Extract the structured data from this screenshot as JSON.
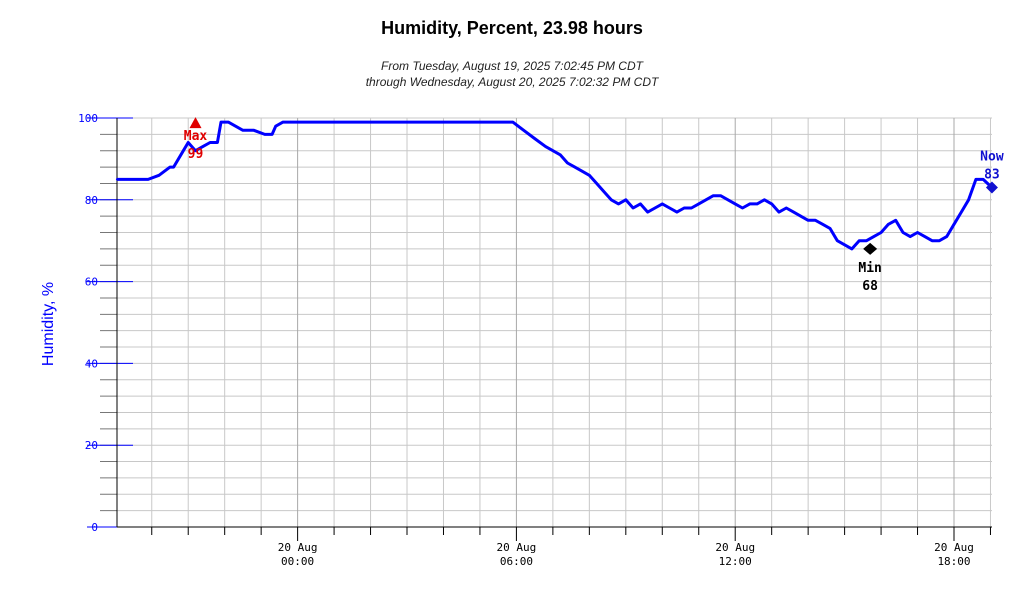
{
  "chart_data": {
    "type": "line",
    "title": "Humidity, Percent, 23.98 hours",
    "subtitle_from": "From Tuesday, August 19, 2025 7:02:45 PM CDT",
    "subtitle_through": "through Wednesday, August 20, 2025 7:02:32 PM CDT",
    "ylabel": "Humidity, %",
    "xlabel": "",
    "ylim": [
      0,
      100
    ],
    "xlim_hours": [
      -4.953,
      19.042
    ],
    "y_ticks": [
      "0",
      "20",
      "40",
      "60",
      "80",
      "100"
    ],
    "x_ticks": [
      {
        "hour": 0,
        "date": "20 Aug",
        "time": "00:00"
      },
      {
        "hour": 6,
        "date": "20 Aug",
        "time": "06:00"
      },
      {
        "hour": 12,
        "date": "20 Aug",
        "time": "12:00"
      },
      {
        "hour": 18,
        "date": "20 Aug",
        "time": "18:00"
      }
    ],
    "grid": true,
    "series": [
      {
        "color": "#0000ff",
        "x": [
          -4.95,
          -4.3,
          -4.1,
          -3.8,
          -3.5,
          -3.4,
          -3.2,
          -3.0,
          -2.8,
          -2.6,
          -2.4,
          -2.2,
          -2.1,
          -1.9,
          -1.7,
          -1.5,
          -1.2,
          -0.9,
          -0.7,
          -0.6,
          -0.4,
          -0.2,
          0.0,
          1.0,
          2.0,
          3.0,
          4.0,
          5.0,
          5.9,
          6.2,
          6.5,
          6.8,
          7.0,
          7.2,
          7.4,
          7.6,
          7.8,
          8.0,
          8.2,
          8.4,
          8.6,
          8.8,
          9.0,
          9.2,
          9.4,
          9.6,
          9.8,
          10.0,
          10.2,
          10.4,
          10.6,
          10.8,
          11.0,
          11.2,
          11.4,
          11.6,
          11.8,
          12.0,
          12.2,
          12.4,
          12.6,
          12.8,
          13.0,
          13.2,
          13.4,
          13.6,
          13.8,
          14.0,
          14.2,
          14.4,
          14.6,
          14.8,
          15.0,
          15.2,
          15.4,
          15.6,
          15.8,
          16.0,
          16.2,
          16.4,
          16.6,
          16.8,
          17.0,
          17.2,
          17.4,
          17.6,
          17.8,
          18.0,
          18.2,
          18.4,
          18.6,
          18.8,
          19.04
        ],
        "values": [
          85,
          85,
          85,
          86,
          88,
          88,
          91,
          94,
          92,
          93,
          94,
          94,
          99,
          99,
          98,
          97,
          97,
          96,
          96,
          98,
          99,
          99,
          99,
          99,
          99,
          99,
          99,
          99,
          99,
          97,
          95,
          93,
          92,
          91,
          89,
          88,
          87,
          86,
          84,
          82,
          80,
          79,
          80,
          78,
          79,
          77,
          78,
          79,
          78,
          77,
          78,
          78,
          79,
          80,
          81,
          81,
          80,
          79,
          78,
          79,
          79,
          80,
          79,
          77,
          78,
          77,
          76,
          75,
          75,
          74,
          73,
          70,
          69,
          68,
          70,
          70,
          71,
          72,
          74,
          75,
          72,
          71,
          72,
          71,
          70,
          70,
          71,
          74,
          77,
          80,
          85,
          85,
          83
        ]
      }
    ],
    "annotations": [
      {
        "label": "Max",
        "value": "99",
        "x": -2.8,
        "y": 99,
        "color": "#e00000"
      },
      {
        "label": "Min",
        "value": "68",
        "x": 15.7,
        "y": 68,
        "color": "#000000"
      },
      {
        "label": "Now",
        "value": "83",
        "x": 19.04,
        "y": 83,
        "color": "#1010d0"
      }
    ]
  }
}
